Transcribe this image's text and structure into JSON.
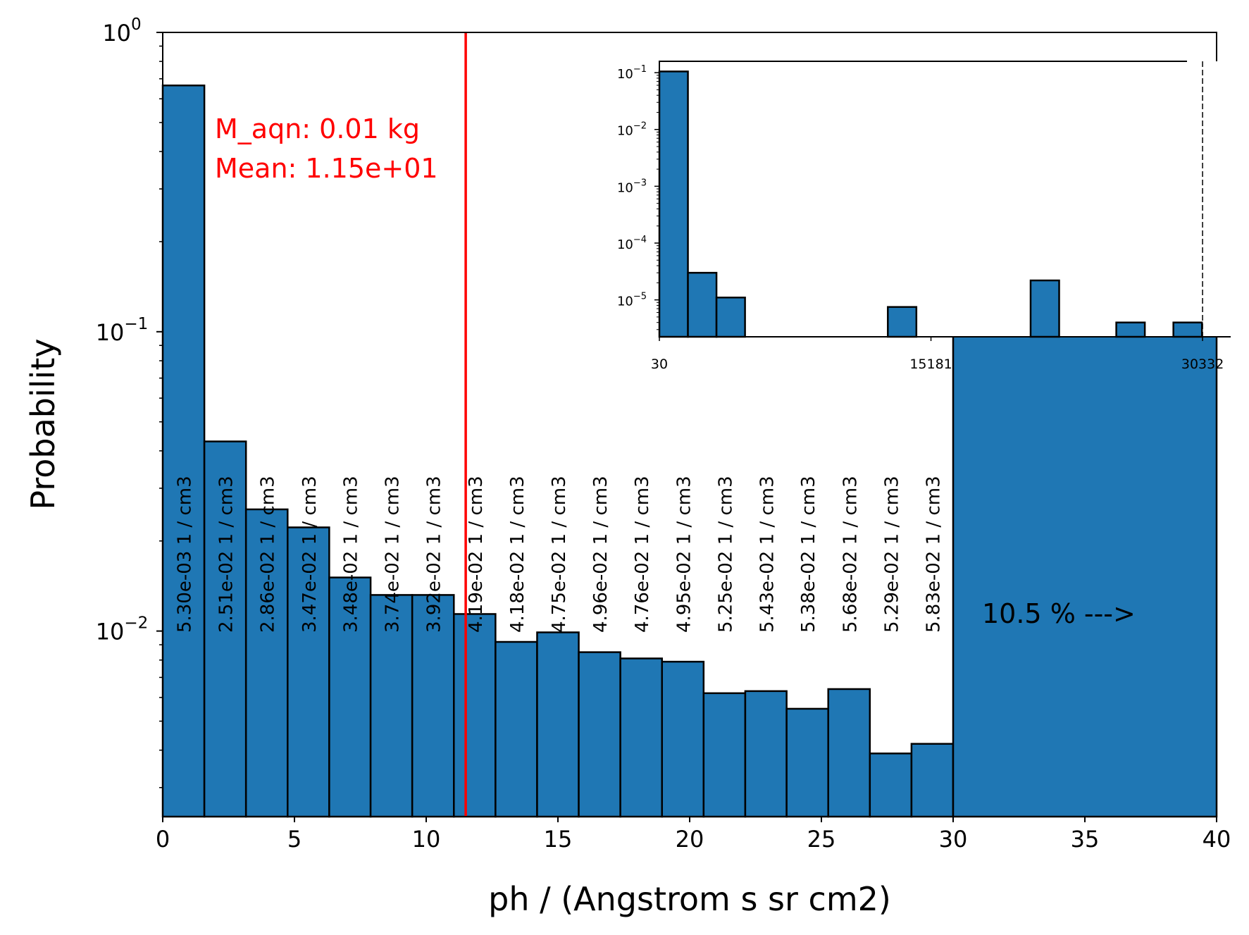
{
  "chart_data": [
    {
      "type": "bar",
      "xlabel": "ph / (Angstrom s sr cm2)",
      "ylabel": "Probability",
      "xlim": [
        0,
        40
      ],
      "ylim_exponent": [
        -2.62,
        0
      ],
      "y_scale": "log",
      "bar_color": "#1f77b4",
      "edge_color": "#000000",
      "x_ticks": [
        "0",
        "5",
        "10",
        "15",
        "20",
        "25",
        "30",
        "35",
        "40"
      ],
      "y_ticks": [
        {
          "base": "10",
          "exp": "0"
        },
        {
          "base": "10",
          "exp": "−1"
        },
        {
          "base": "10",
          "exp": "−2"
        }
      ],
      "bins": [
        {
          "x0": 0.0,
          "x1": 1.58,
          "value": 0.665,
          "label": "5.30e-03 1 / cm3"
        },
        {
          "x0": 1.58,
          "x1": 3.16,
          "value": 0.043,
          "label": "2.51e-02 1 / cm3"
        },
        {
          "x0": 3.16,
          "x1": 4.74,
          "value": 0.0255,
          "label": "2.86e-02 1 / cm3"
        },
        {
          "x0": 4.74,
          "x1": 6.32,
          "value": 0.0222,
          "label": "3.47e-02 1 / cm3"
        },
        {
          "x0": 6.32,
          "x1": 7.89,
          "value": 0.0151,
          "label": "3.48e-02 1 / cm3"
        },
        {
          "x0": 7.89,
          "x1": 9.47,
          "value": 0.0132,
          "label": "3.74e-02 1 / cm3"
        },
        {
          "x0": 9.47,
          "x1": 11.05,
          "value": 0.0132,
          "label": "3.92e-02 1 / cm3"
        },
        {
          "x0": 11.05,
          "x1": 12.63,
          "value": 0.0114,
          "label": "4.19e-02 1 / cm3"
        },
        {
          "x0": 12.63,
          "x1": 14.21,
          "value": 0.0092,
          "label": "4.18e-02 1 / cm3"
        },
        {
          "x0": 14.21,
          "x1": 15.79,
          "value": 0.0099,
          "label": "4.75e-02 1 / cm3"
        },
        {
          "x0": 15.79,
          "x1": 17.37,
          "value": 0.0085,
          "label": "4.96e-02 1 / cm3"
        },
        {
          "x0": 17.37,
          "x1": 18.95,
          "value": 0.0081,
          "label": "4.76e-02 1 / cm3"
        },
        {
          "x0": 18.95,
          "x1": 20.53,
          "value": 0.0079,
          "label": "4.95e-02 1 / cm3"
        },
        {
          "x0": 20.53,
          "x1": 22.11,
          "value": 0.0062,
          "label": "5.25e-02 1 / cm3"
        },
        {
          "x0": 22.11,
          "x1": 23.68,
          "value": 0.0063,
          "label": "5.43e-02 1 / cm3"
        },
        {
          "x0": 23.68,
          "x1": 25.26,
          "value": 0.0055,
          "label": "5.38e-02 1 / cm3"
        },
        {
          "x0": 25.26,
          "x1": 26.84,
          "value": 0.0064,
          "label": "5.68e-02 1 / cm3"
        },
        {
          "x0": 26.84,
          "x1": 28.42,
          "value": 0.0039,
          "label": "5.29e-02 1 / cm3"
        },
        {
          "x0": 28.42,
          "x1": 30.0,
          "value": 0.0042,
          "label": "5.83e-02 1 / cm3"
        },
        {
          "x0": 30.0,
          "x1": 40.0,
          "value": 0.105,
          "label": ""
        }
      ],
      "mean_line": {
        "x": 11.5,
        "color": "#ff0000"
      },
      "annotations": {
        "mass": "M_aqn: 0.01 kg",
        "mean": "Mean: 1.15e+01",
        "overflow": "10.5 % --->"
      }
    },
    {
      "type": "bar",
      "y_scale": "log",
      "xlim": [
        30,
        31900
      ],
      "ylim_exponent": [
        -5.65,
        -0.8
      ],
      "x_ticks": [
        "30",
        "15181",
        "30332"
      ],
      "y_ticks": [
        {
          "base": "10",
          "exp": "−1"
        },
        {
          "base": "10",
          "exp": "−2"
        },
        {
          "base": "10",
          "exp": "−3"
        },
        {
          "base": "10",
          "exp": "−4"
        },
        {
          "base": "10",
          "exp": "−5"
        }
      ],
      "bins": [
        {
          "x0": 30,
          "x1": 1623,
          "value": 0.105
        },
        {
          "x0": 1623,
          "x1": 3216,
          "value": 3e-05
        },
        {
          "x0": 3216,
          "x1": 4809,
          "value": 1.1e-05
        },
        {
          "x0": 12774,
          "x1": 14367,
          "value": 7.5e-06
        },
        {
          "x0": 20739,
          "x1": 22332,
          "value": 2.2e-05
        },
        {
          "x0": 25518,
          "x1": 27111,
          "value": 4e-06
        },
        {
          "x0": 28704,
          "x1": 30297,
          "value": 4e-06
        }
      ],
      "dashed_line_x": 30332
    }
  ]
}
